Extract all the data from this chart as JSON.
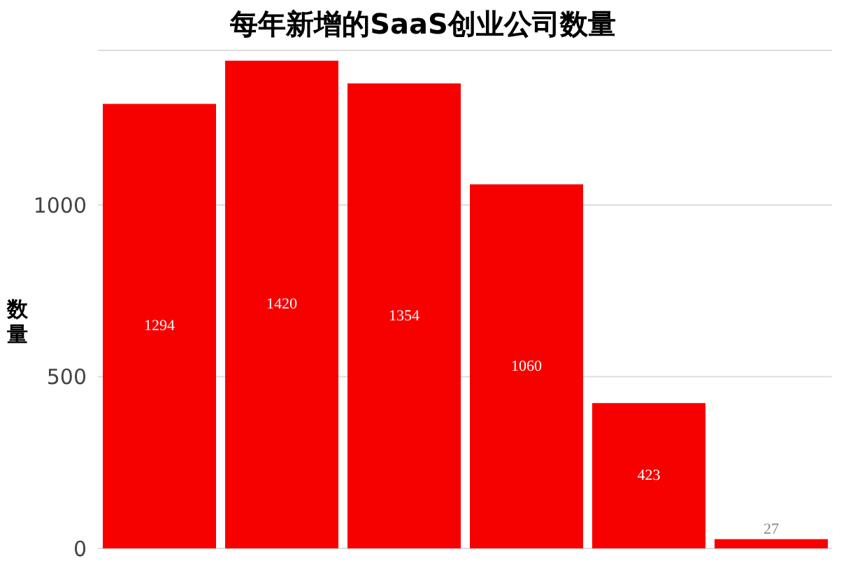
{
  "chart_data": {
    "type": "bar",
    "title": "每年新增的SaaS创业公司数量",
    "ylabel": "数量",
    "categories": [
      null,
      null,
      null,
      null,
      null,
      null
    ],
    "values": [
      1294,
      1420,
      1354,
      1060,
      423,
      27
    ],
    "color": "#f70000",
    "ylim": [
      0,
      1450
    ],
    "yticks": [
      0,
      500,
      1000
    ],
    "grid": "y",
    "data_labels": true,
    "tick_labels": "y"
  }
}
